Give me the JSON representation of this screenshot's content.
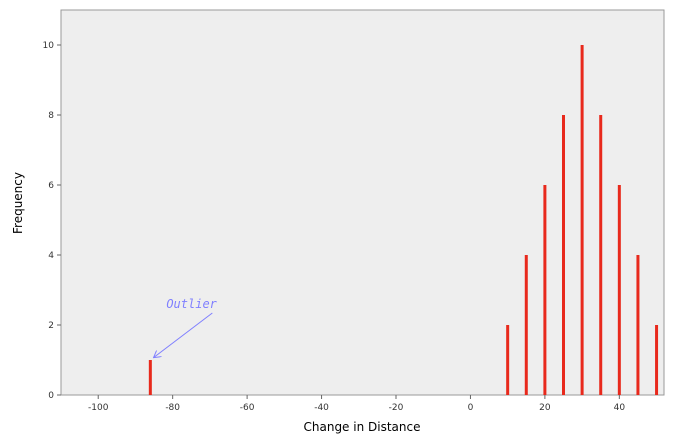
{
  "chart_data": {
    "type": "bar",
    "title": "",
    "xlabel": "Change in Distance",
    "ylabel": "Frequency",
    "xlim": [
      -110,
      52
    ],
    "ylim": [
      0,
      11
    ],
    "x_ticks": [
      -100,
      -80,
      -60,
      -40,
      -20,
      0,
      20,
      40
    ],
    "y_ticks": [
      0,
      2,
      4,
      6,
      8,
      10
    ],
    "grid": false,
    "legend": "none",
    "series": [
      {
        "x": [
          -86,
          10,
          15,
          20,
          25,
          30,
          35,
          40,
          45,
          50
        ],
        "values": [
          1,
          2,
          4,
          6,
          8,
          10,
          8,
          6,
          4,
          2
        ]
      }
    ],
    "annotations": [
      {
        "text": "Outlier",
        "target_x": -86,
        "target_y": 1
      }
    ],
    "colors": {
      "bars": "#e8291c",
      "plot_background": "#eeeeee",
      "annotation": "#7f7fff"
    }
  }
}
